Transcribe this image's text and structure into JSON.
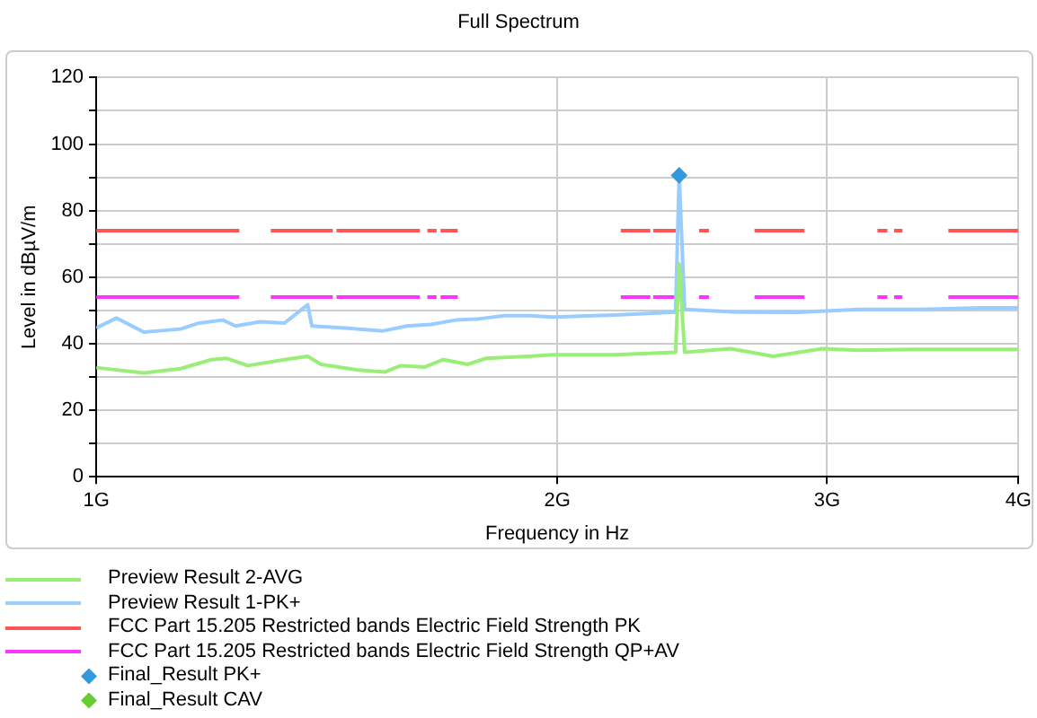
{
  "chart_data": {
    "type": "line",
    "title": "Full Spectrum",
    "xlabel": "Frequency in Hz",
    "ylabel": "Level in dBµV/m",
    "log": "x",
    "grid": true,
    "legend": "bottom",
    "xlim": [
      1,
      4
    ],
    "xticks": [
      {
        "value": 1,
        "label": "1G"
      },
      {
        "value": 2,
        "label": "2G"
      },
      {
        "value": 3,
        "label": "3G"
      },
      {
        "value": 4,
        "label": "4G"
      }
    ],
    "ylim": [
      0,
      120
    ],
    "yticks": [
      0,
      {
        "value": 10,
        "label": null
      },
      20,
      {
        "value": 30,
        "label": null
      },
      40,
      {
        "value": 50,
        "label": null
      },
      60,
      {
        "value": 70,
        "label": null
      },
      80,
      {
        "value": 90,
        "label": null
      },
      100,
      {
        "value": 110,
        "label": null
      },
      120
    ],
    "series": [
      {
        "type": "line",
        "name": "Preview Result 2-AVG",
        "color": "#99ee77",
        "marker": "none",
        "x": [
          1,
          1.074,
          1.135,
          1.189,
          1.216,
          1.256,
          1.327,
          1.374,
          1.402,
          1.482,
          1.544,
          1.58,
          1.639,
          1.685,
          1.748,
          1.797,
          1.916,
          1.988,
          2.18,
          2.389,
          2.402,
          2.422,
          2.595,
          2.767,
          2.978,
          3.147,
          3.45,
          4
        ],
        "values": [
          32.8,
          31.2,
          32.5,
          35.2,
          35.6,
          33.4,
          35.2,
          36.2,
          33.8,
          32.1,
          31.5,
          33.4,
          33,
          35.2,
          33.8,
          35.6,
          36.2,
          36.7,
          36.7,
          37.4,
          64,
          37.4,
          38.5,
          36.2,
          38.5,
          38,
          38.3,
          38.3
        ]
      },
      {
        "type": "line",
        "name": "Preview Result 1-PK+",
        "color": "#99ccff",
        "marker": "none",
        "x": [
          1,
          1.031,
          1.074,
          1.135,
          1.167,
          1.21,
          1.233,
          1.279,
          1.327,
          1.374,
          1.383,
          1.455,
          1.537,
          1.595,
          1.654,
          1.716,
          1.78,
          1.848,
          1.916,
          1.988,
          2.18,
          2.389,
          2.402,
          2.422,
          2.619,
          2.871,
          3.147,
          3.45,
          3.782,
          4
        ],
        "values": [
          44.7,
          47.7,
          43.5,
          44.4,
          46.2,
          47.1,
          45.3,
          46.6,
          46.2,
          51.7,
          45.3,
          44.7,
          43.8,
          45.3,
          45.8,
          47.1,
          47.5,
          48.4,
          48.4,
          48,
          48.6,
          49.5,
          90.6,
          50.3,
          49.5,
          49.4,
          50.3,
          50.3,
          50.8,
          50.8
        ]
      },
      {
        "type": "line",
        "name": "FCC Part 15.205 Restricted bands Electric Field Strength PK",
        "color": "#ff5555",
        "marker": "none",
        "x": [
          1,
          1.24,
          1.27,
          1.3,
          1.427,
          1.431,
          1.435,
          1.6265,
          1.636,
          1.645,
          1.668,
          1.673,
          1.678,
          1.722,
          1.9,
          2.2,
          2.3,
          2.305,
          2.31,
          2.39,
          2.43,
          2.475,
          2.512,
          2.6,
          2.69,
          2.9,
          3.1,
          3.236,
          3.285,
          3.3,
          3.318,
          3.36,
          3.5,
          3.6,
          4
        ],
        "values": [
          74,
          74,
          null,
          74,
          74,
          null,
          74,
          74,
          null,
          74,
          74,
          null,
          74,
          74,
          null,
          74,
          74,
          null,
          74,
          74,
          null,
          74,
          74,
          null,
          74,
          74,
          null,
          74,
          74,
          null,
          74,
          74,
          null,
          74,
          74
        ]
      },
      {
        "type": "line",
        "name": "FCC Part 15.205 Restricted bands Electric Field Strength QP+AV",
        "color": "#ff33ff",
        "marker": "none",
        "x": [
          1,
          1.24,
          1.27,
          1.3,
          1.427,
          1.431,
          1.435,
          1.6265,
          1.636,
          1.645,
          1.668,
          1.673,
          1.678,
          1.722,
          1.9,
          2.2,
          2.3,
          2.305,
          2.31,
          2.39,
          2.43,
          2.475,
          2.512,
          2.6,
          2.69,
          2.9,
          3.1,
          3.236,
          3.285,
          3.3,
          3.318,
          3.36,
          3.5,
          3.6,
          4
        ],
        "values": [
          54,
          54,
          null,
          54,
          54,
          null,
          54,
          54,
          null,
          54,
          54,
          null,
          54,
          54,
          null,
          54,
          54,
          null,
          54,
          54,
          null,
          54,
          54,
          null,
          54,
          54,
          null,
          54,
          54,
          null,
          54,
          54,
          null,
          54,
          54
        ]
      },
      {
        "type": "scatter",
        "name": "Final_Result PK+",
        "color": "#3399dd",
        "marker": "diamond",
        "x": [
          2.402
        ],
        "values": [
          90.6
        ]
      },
      {
        "type": "scatter",
        "name": "Final_Result CAV",
        "color": "#66cc33",
        "marker": "diamond"
      }
    ]
  }
}
